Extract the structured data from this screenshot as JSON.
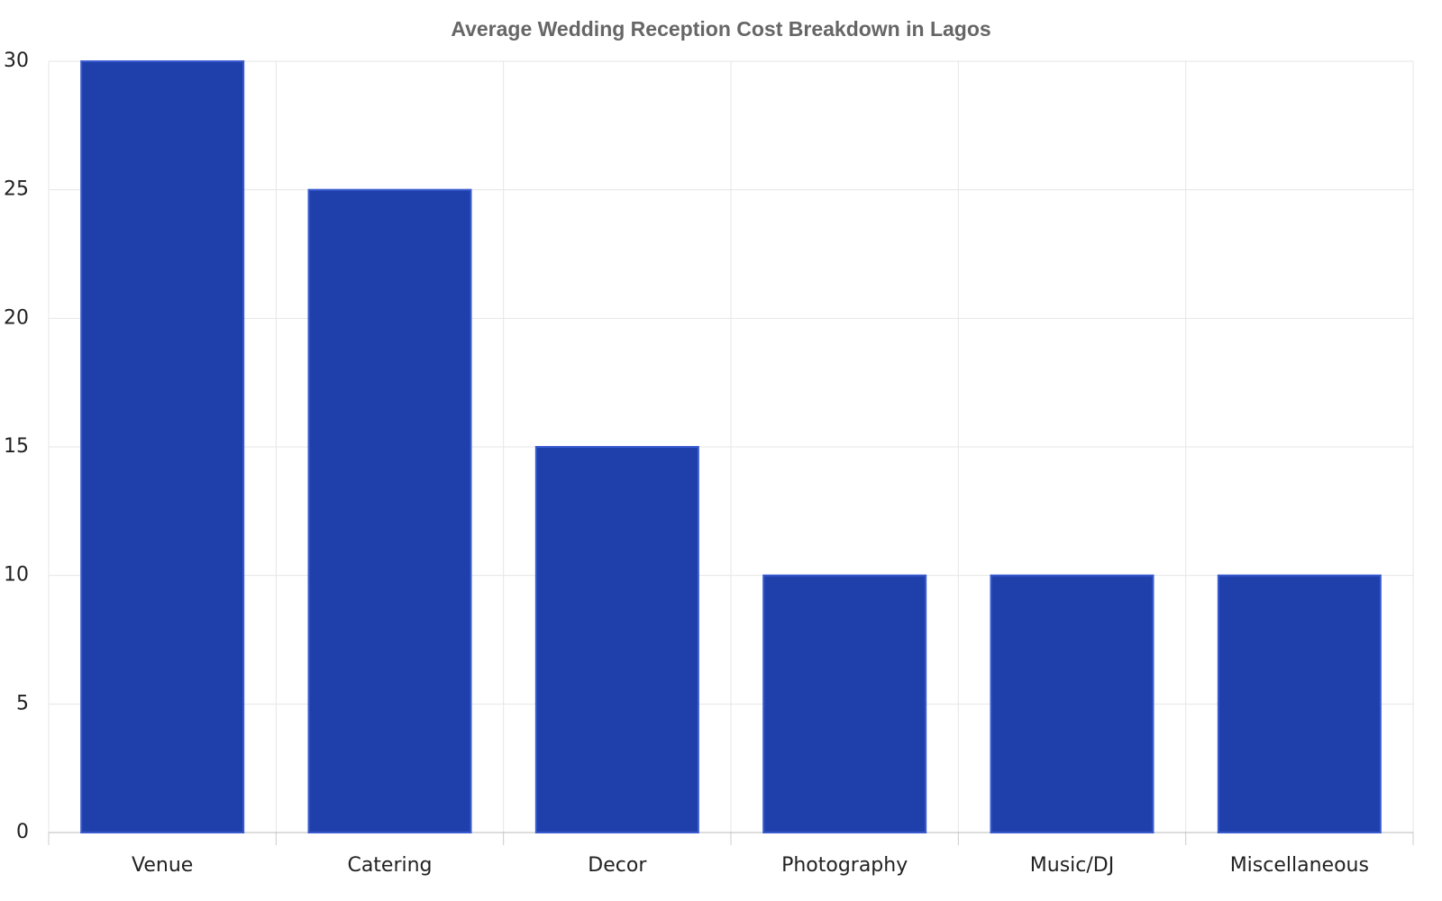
{
  "chart_data": {
    "type": "bar",
    "title": "Average Wedding Reception Cost Breakdown in Lagos",
    "categories": [
      "Venue",
      "Catering",
      "Decor",
      "Photography",
      "Music/DJ",
      "Miscellaneous"
    ],
    "values": [
      30,
      25,
      15,
      10,
      10,
      10
    ],
    "color": "#1f3fab",
    "ylim": [
      0,
      30
    ],
    "yticks": [
      0,
      5,
      10,
      15,
      20,
      25,
      30
    ],
    "grid": true
  }
}
